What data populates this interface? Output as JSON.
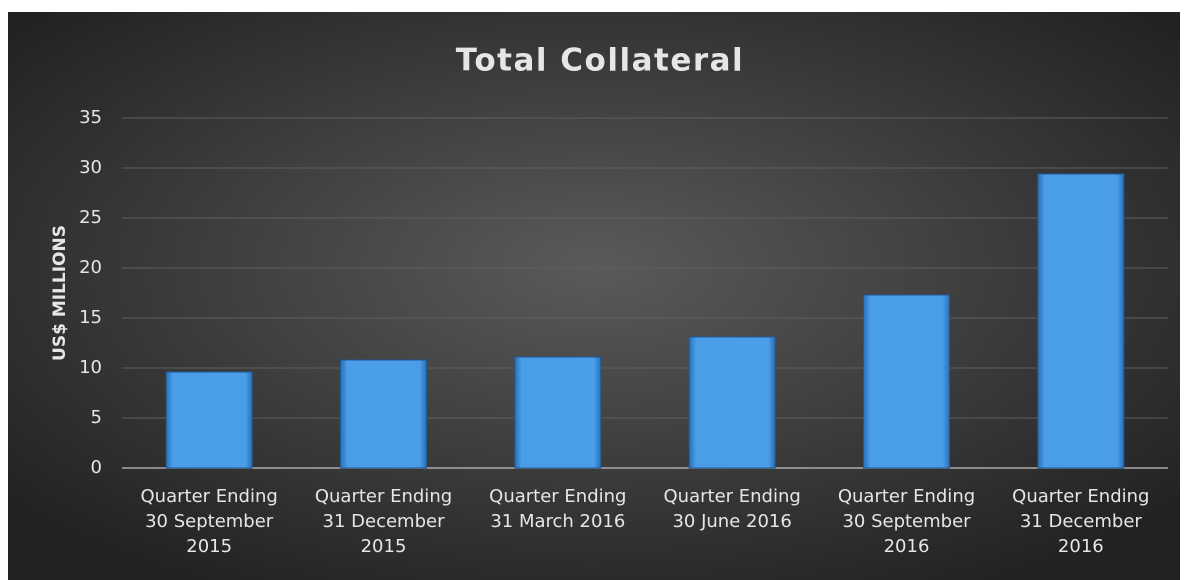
{
  "chart_data": {
    "type": "bar",
    "title": "Total Collateral",
    "y_label": "US$ MILLIONS",
    "categories": [
      "Quarter Ending 30 September 2015",
      "Quarter Ending 31 December 2015",
      "Quarter Ending 31 March 2016",
      "Quarter Ending 30 June 2016",
      "Quarter Ending 30 September 2016",
      "Quarter Ending 31 December 2016"
    ],
    "values": [
      9.6,
      10.8,
      11.1,
      13.1,
      17.3,
      29.4
    ],
    "color": "#4a9ee8",
    "ylim": [
      0,
      35
    ],
    "yticks": [
      0,
      5,
      10,
      15,
      20,
      25,
      30,
      35
    ],
    "grid": true
  }
}
